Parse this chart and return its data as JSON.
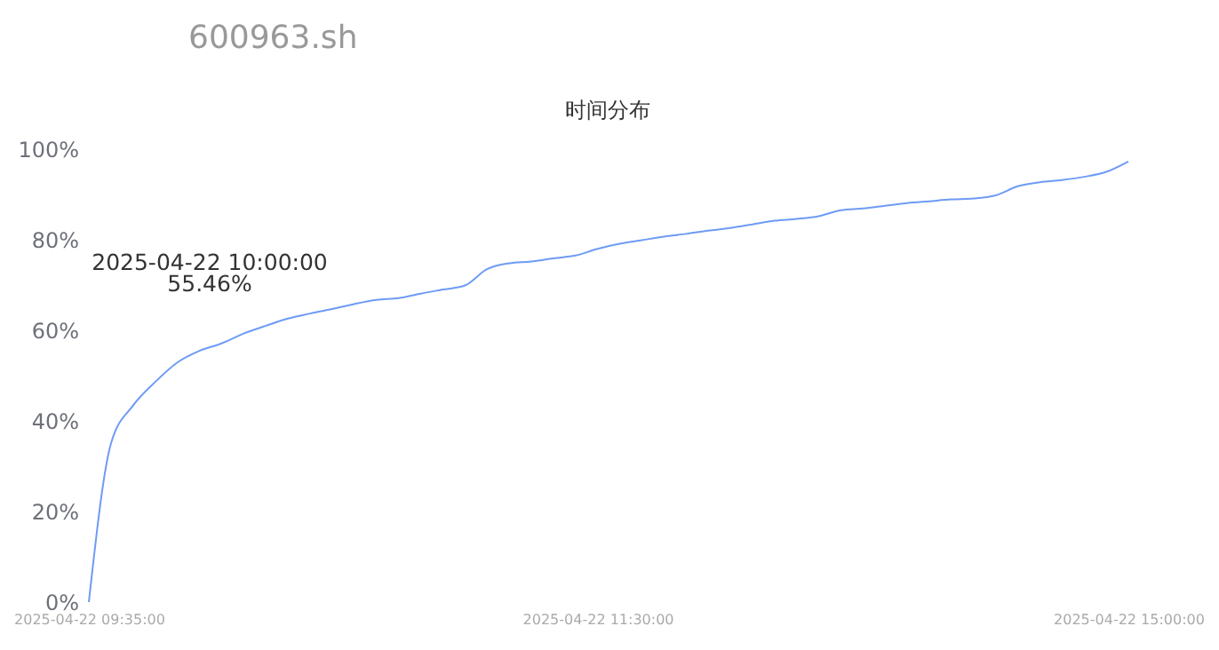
{
  "chart_data": {
    "type": "line",
    "title": "600963.sh",
    "subtitle": "时间分布",
    "categories": [
      "2025-04-22 09:35:00",
      null,
      null,
      null,
      null,
      null,
      null,
      null,
      null,
      null,
      null,
      null,
      null,
      null,
      null,
      null,
      null,
      null,
      null,
      null,
      null,
      null,
      null,
      "2025-04-22 11:30:00",
      null,
      null,
      null,
      null,
      null,
      null,
      null,
      null,
      null,
      null,
      null,
      null,
      null,
      null,
      null,
      null,
      null,
      null,
      null,
      null,
      null,
      null,
      null,
      "2025-04-22 15:00:00"
    ],
    "series": [
      {
        "color": "#6e9bf5",
        "values": [
          0,
          35,
          43.4,
          48.6,
          52.9,
          55.46,
          57.1,
          59.3,
          61.0,
          62.6,
          63.7,
          64.7,
          65.8,
          66.7,
          67.1,
          68.1,
          69.0,
          69.9,
          73.5,
          74.8,
          75.2,
          75.9,
          76.5,
          78.0,
          79.1,
          79.9,
          80.7,
          81.3,
          82.0,
          82.6,
          83.4,
          84.2,
          84.6,
          85.2,
          86.5,
          86.9,
          87.5,
          88.1,
          88.5,
          88.9,
          89.1,
          89.8,
          91.8,
          92.7,
          93.2,
          93.9,
          95.0,
          97.3
        ]
      }
    ],
    "ylim": [
      0,
      100
    ],
    "yticks": [
      {
        "value": 0,
        "label": "0%"
      },
      {
        "value": 20,
        "label": "20%"
      },
      {
        "value": 40,
        "label": "40%"
      },
      {
        "value": 60,
        "label": "60%"
      },
      {
        "value": 80,
        "label": "80%"
      },
      {
        "value": 100,
        "label": "100%"
      }
    ],
    "annotations": [
      "2025-04-22 10:00:00",
      "55.46%"
    ],
    "grid": false,
    "legend": false,
    "marker": "none",
    "line_style": "solid"
  }
}
